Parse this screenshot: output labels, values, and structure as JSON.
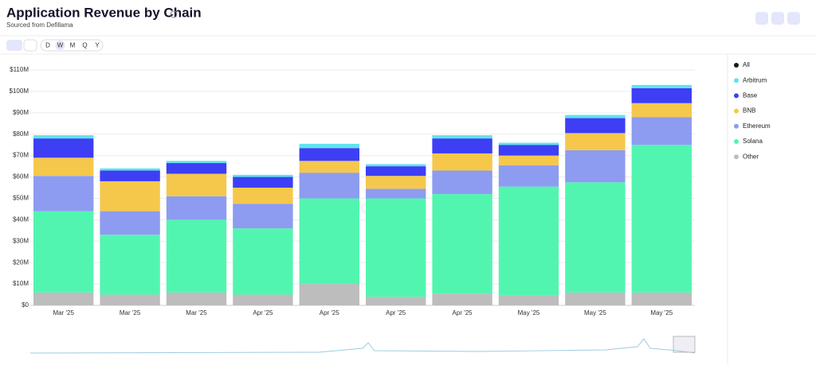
{
  "title": "Application Revenue by Chain",
  "subtitle": "Sourced from Defillama",
  "controls": [
    "D",
    "W",
    "M",
    "Q",
    "Y"
  ],
  "chart_data": {
    "type": "bar",
    "stacked": true,
    "watermark": [
      "Blockworks",
      "Research"
    ],
    "categories": [
      "Mar '25",
      "Mar '25",
      "Mar '25",
      "Apr '25",
      "Apr '25",
      "Apr '25",
      "Apr '25",
      "May '25",
      "May '25",
      "May '25"
    ],
    "toggle": {
      "name": "All",
      "color": "#1a1a1a"
    },
    "series": [
      {
        "name": "Other",
        "color": "#bdbdbd",
        "values": [
          6,
          5,
          6,
          5,
          10,
          4,
          5.5,
          4.5,
          6,
          6
        ]
      },
      {
        "name": "Solana",
        "color": "#52f5b0",
        "values": [
          38,
          28,
          34,
          31,
          40,
          46,
          46.5,
          51,
          51.5,
          69
        ]
      },
      {
        "name": "Ethereum",
        "color": "#8d9cf0",
        "values": [
          16.5,
          11,
          11,
          11.5,
          12,
          4.5,
          11,
          10,
          15,
          13
        ]
      },
      {
        "name": "BNB",
        "color": "#f5c84c",
        "values": [
          8.5,
          14,
          10.5,
          7.5,
          5.5,
          6,
          8,
          4.5,
          8,
          6.5
        ]
      },
      {
        "name": "Base",
        "color": "#3e3ef5",
        "values": [
          9,
          5,
          5,
          5,
          6,
          4.5,
          7,
          5,
          7,
          7
        ]
      },
      {
        "name": "Arbitrum",
        "color": "#5ee3ed",
        "values": [
          1.5,
          1,
          1,
          1,
          2,
          1,
          1.5,
          1,
          1.5,
          1.5
        ]
      }
    ],
    "ylim": [
      0,
      110
    ],
    "yticks": [
      {
        "value": 0,
        "label": "$0"
      },
      {
        "value": 10,
        "label": "$10M"
      },
      {
        "value": 20,
        "label": "$20M"
      },
      {
        "value": 30,
        "label": "$30M"
      },
      {
        "value": 40,
        "label": "$40M"
      },
      {
        "value": 50,
        "label": "$50M"
      },
      {
        "value": 60,
        "label": "$60M"
      },
      {
        "value": 70,
        "label": "$70M"
      },
      {
        "value": 80,
        "label": "$80M"
      },
      {
        "value": 90,
        "label": "$90M"
      },
      {
        "value": 100,
        "label": "$100M"
      },
      {
        "value": 110,
        "label": "$110M"
      }
    ],
    "grid": true
  }
}
